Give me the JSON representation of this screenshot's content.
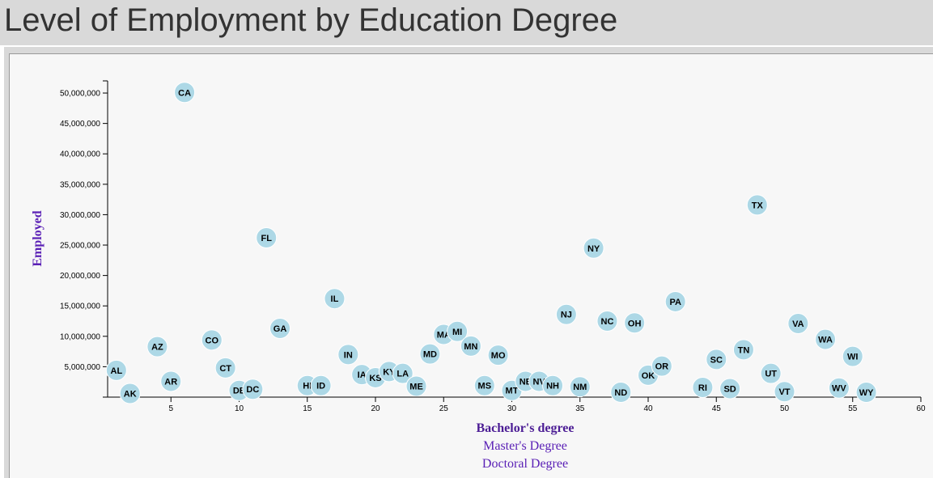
{
  "page": {
    "title": "Level of Employment by Education Degree"
  },
  "axis_options": {
    "x": [
      "Bachelor's degree",
      "Master's Degree",
      "Doctoral Degree"
    ],
    "active": "Bachelor's degree"
  },
  "colors": {
    "circle": "#add8e6",
    "label": "#5b21b6",
    "header_bg": "#d9d9d9",
    "plot_bg": "#f7f7f7"
  },
  "chart_data": {
    "type": "scatter",
    "xlabel": "Bachelor's degree",
    "ylabel": "Employed",
    "xlim": [
      0,
      60
    ],
    "ylim": [
      0,
      52000000
    ],
    "x_ticks": [
      5,
      10,
      15,
      20,
      25,
      30,
      35,
      40,
      45,
      50,
      55,
      60
    ],
    "x_tick_labels": [
      "5",
      "10",
      "15",
      "20",
      "25",
      "30",
      "35",
      "40",
      "45",
      "50",
      "55",
      "60"
    ],
    "y_ticks": [
      5000000,
      10000000,
      15000000,
      20000000,
      25000000,
      30000000,
      35000000,
      40000000,
      45000000,
      50000000
    ],
    "y_tick_labels": [
      "5,000,000",
      "10,000,000",
      "15,000,000",
      "20,000,000",
      "25,000,000",
      "30,000,000",
      "35,000,000",
      "40,000,000",
      "45,000,000",
      "50,000,000"
    ],
    "grid": false,
    "points": [
      {
        "label": "AL",
        "x": 1,
        "y": 4400000
      },
      {
        "label": "AK",
        "x": 2,
        "y": 600000
      },
      {
        "label": "AZ",
        "x": 4,
        "y": 8300000
      },
      {
        "label": "AR",
        "x": 5,
        "y": 2600000
      },
      {
        "label": "CA",
        "x": 6,
        "y": 50100000
      },
      {
        "label": "CO",
        "x": 8,
        "y": 9400000
      },
      {
        "label": "CT",
        "x": 9,
        "y": 4800000
      },
      {
        "label": "DE",
        "x": 10,
        "y": 1100000
      },
      {
        "label": "DC",
        "x": 11,
        "y": 1300000
      },
      {
        "label": "FL",
        "x": 12,
        "y": 26200000
      },
      {
        "label": "GA",
        "x": 13,
        "y": 11300000
      },
      {
        "label": "HI",
        "x": 15,
        "y": 1900000
      },
      {
        "label": "ID",
        "x": 16,
        "y": 1900000
      },
      {
        "label": "IL",
        "x": 17,
        "y": 16200000
      },
      {
        "label": "IN",
        "x": 18,
        "y": 7000000
      },
      {
        "label": "IA",
        "x": 19,
        "y": 3700000
      },
      {
        "label": "KS",
        "x": 20,
        "y": 3200000
      },
      {
        "label": "KY",
        "x": 21,
        "y": 4200000
      },
      {
        "label": "LA",
        "x": 22,
        "y": 3900000
      },
      {
        "label": "ME",
        "x": 23,
        "y": 1800000
      },
      {
        "label": "MD",
        "x": 24,
        "y": 7100000
      },
      {
        "label": "MA",
        "x": 25,
        "y": 10300000
      },
      {
        "label": "MI",
        "x": 26,
        "y": 10800000
      },
      {
        "label": "MN",
        "x": 27,
        "y": 8400000
      },
      {
        "label": "MS",
        "x": 28,
        "y": 1900000
      },
      {
        "label": "MO",
        "x": 29,
        "y": 6900000
      },
      {
        "label": "MT",
        "x": 30,
        "y": 1100000
      },
      {
        "label": "NE",
        "x": 31,
        "y": 2600000
      },
      {
        "label": "NV",
        "x": 32,
        "y": 2600000
      },
      {
        "label": "NH",
        "x": 33,
        "y": 1900000
      },
      {
        "label": "NJ",
        "x": 34,
        "y": 13600000
      },
      {
        "label": "NM",
        "x": 35,
        "y": 1700000
      },
      {
        "label": "NY",
        "x": 36,
        "y": 24500000
      },
      {
        "label": "NC",
        "x": 37,
        "y": 12500000
      },
      {
        "label": "ND",
        "x": 38,
        "y": 800000
      },
      {
        "label": "OH",
        "x": 39,
        "y": 12200000
      },
      {
        "label": "OK",
        "x": 40,
        "y": 3600000
      },
      {
        "label": "OR",
        "x": 41,
        "y": 5100000
      },
      {
        "label": "PA",
        "x": 42,
        "y": 15700000
      },
      {
        "label": "RI",
        "x": 44,
        "y": 1600000
      },
      {
        "label": "SC",
        "x": 45,
        "y": 6200000
      },
      {
        "label": "SD",
        "x": 46,
        "y": 1400000
      },
      {
        "label": "TN",
        "x": 47,
        "y": 7800000
      },
      {
        "label": "TX",
        "x": 48,
        "y": 31600000
      },
      {
        "label": "UT",
        "x": 49,
        "y": 3900000
      },
      {
        "label": "VT",
        "x": 50,
        "y": 900000
      },
      {
        "label": "VA",
        "x": 51,
        "y": 12100000
      },
      {
        "label": "WA",
        "x": 53,
        "y": 9500000
      },
      {
        "label": "WI",
        "x": 55,
        "y": 6700000
      },
      {
        "label": "WV",
        "x": 54,
        "y": 1500000
      },
      {
        "label": "WY",
        "x": 56,
        "y": 800000
      }
    ]
  }
}
